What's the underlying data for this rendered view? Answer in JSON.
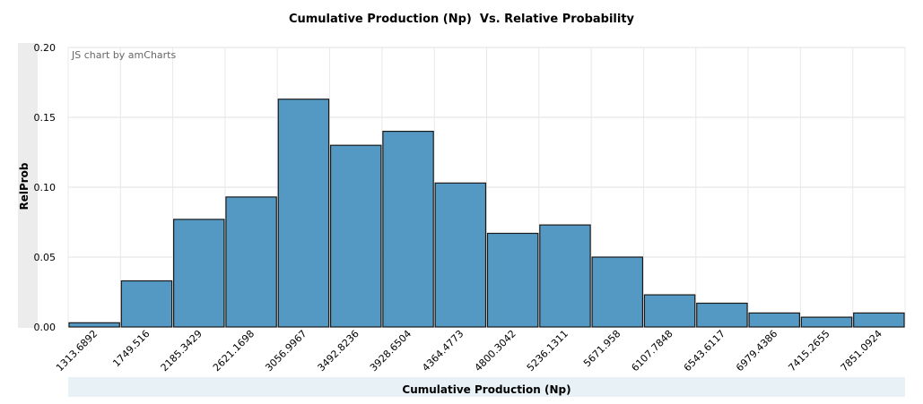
{
  "chart_data": {
    "type": "bar",
    "title": "Cumulative Production (Np)  Vs. Relative Probability",
    "xlabel": "Cumulative Production (Np)",
    "ylabel": "RelProb",
    "credit": "JS chart by amCharts",
    "categories": [
      "1313.6892",
      "1749.516",
      "2185.3429",
      "2621.1698",
      "3056.9967",
      "3492.8236",
      "3928.6504",
      "4364.4773",
      "4800.3042",
      "5236.1311",
      "5671.958",
      "6107.7848",
      "6543.6117",
      "6979.4386",
      "7415.2655",
      "7851.0924"
    ],
    "values": [
      0.003,
      0.033,
      0.077,
      0.093,
      0.163,
      0.13,
      0.14,
      0.103,
      0.067,
      0.073,
      0.05,
      0.023,
      0.017,
      0.01,
      0.007,
      0.01
    ],
    "ylim": [
      0,
      0.2
    ],
    "yticks": [
      "0.00",
      "0.05",
      "0.10",
      "0.15",
      "0.20"
    ],
    "grid": true,
    "bar_color": "#5499c3",
    "bar_border_color": "#1a1a1a"
  }
}
